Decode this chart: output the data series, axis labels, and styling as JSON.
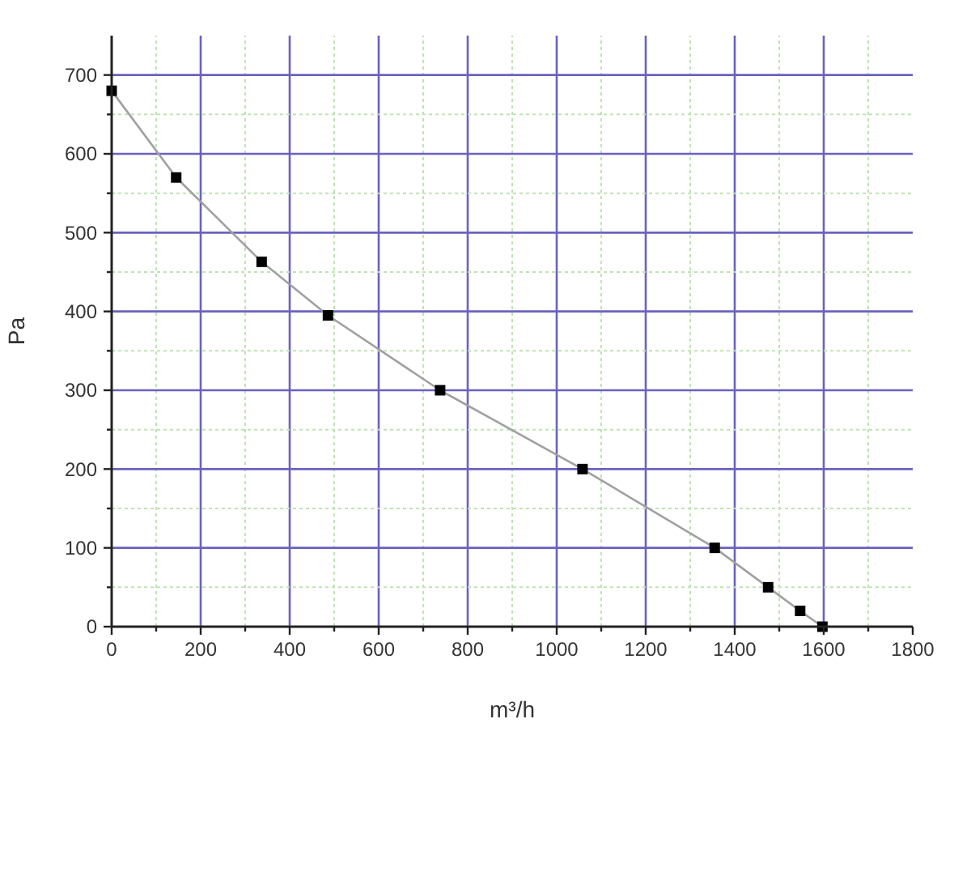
{
  "chart_data": {
    "type": "line",
    "xlabel": "m³/h",
    "ylabel": "Pa",
    "xlim": [
      0,
      1800
    ],
    "ylim": [
      0,
      750
    ],
    "xticks": [
      0,
      {
        "value": 100,
        "label": null
      },
      200,
      {
        "value": 300,
        "label": null
      },
      400,
      {
        "value": 500,
        "label": null
      },
      600,
      {
        "value": 700,
        "label": null
      },
      800,
      {
        "value": 900,
        "label": null
      },
      1000,
      {
        "value": 1100,
        "label": null
      },
      1200,
      {
        "value": 1300,
        "label": null
      },
      1400,
      {
        "value": 1500,
        "label": null
      },
      1600,
      {
        "value": 1700,
        "label": null
      },
      1800
    ],
    "yticks": [
      0,
      {
        "value": 50,
        "label": null
      },
      100,
      {
        "value": 150,
        "label": null
      },
      200,
      {
        "value": 250,
        "label": null
      },
      300,
      {
        "value": 350,
        "label": null
      },
      400,
      {
        "value": 450,
        "label": null
      },
      500,
      {
        "value": 550,
        "label": null
      },
      600,
      {
        "value": 650,
        "label": null
      },
      700
    ],
    "grid": true,
    "marker": "square",
    "line_style": "solid",
    "series": [
      {
        "marker": "none",
        "color": "#a0a0a0",
        "x": [
          0,
          145,
          337,
          486,
          738,
          1058,
          1355,
          1475,
          1547,
          1597
        ],
        "values": [
          680,
          570,
          463,
          395,
          300,
          200,
          100,
          50,
          20,
          0
        ]
      },
      {
        "type": "scatter",
        "color": "#000000",
        "x": [
          0,
          145,
          337,
          486,
          738,
          1058,
          1355,
          1475,
          1547,
          1597
        ],
        "values": [
          680,
          570,
          463,
          395,
          300,
          200,
          100,
          50,
          20,
          0
        ]
      }
    ]
  }
}
